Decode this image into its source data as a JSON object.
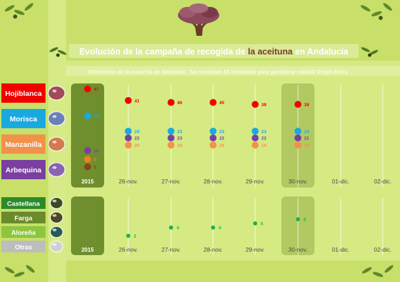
{
  "header": {
    "title_prefix": "Evolución de la campaña de recogida de ",
    "title_highlight": "la aceituna",
    "title_suffix": " en Andalucía",
    "subtitle": "Estimación de la cosecha en toneladas. Se necesitan 55 toneladas para garantizar calidad Virgen Extra"
  },
  "colors": {
    "background": "#c8e06a",
    "panel": "#d6eb86",
    "column_highlight": "#6f8f2e",
    "gridline": "#ffffff",
    "Hojiblanca": "#f20000",
    "Morisca": "#19a9e0",
    "Manzanilla": "#f2924a",
    "Arbequina": "#7a3fa0",
    "Castellana": "#2c8a2a",
    "Farga": "#6b8a2a",
    "Aloreña": "#8cc63f",
    "Otras": "#bdbdbd",
    "extra_dark": "#8b4513",
    "extra_orange": "#e8811f",
    "lower_series": "#1fb24a"
  },
  "legend": {
    "upper": [
      {
        "name": "Hojiblanca",
        "color": "#f20000",
        "olive_color": "#a34a5a"
      },
      {
        "name": "Morisca",
        "color": "#19a9e0",
        "olive_color": "#6b7fb8"
      },
      {
        "name": "Manzanilla",
        "color": "#f2924a",
        "olive_color": "#d37a4f"
      },
      {
        "name": "Arbequina",
        "color": "#7a3fa0",
        "olive_color": "#8a63b3"
      }
    ],
    "lower": [
      {
        "name": "Castellana",
        "color": "#2c8a2a",
        "olive_color": "#3a4a22"
      },
      {
        "name": "Farga",
        "color": "#6b8a2a",
        "olive_color": "#4a4a1e"
      },
      {
        "name": "Aloreña",
        "color": "#8cc63f",
        "olive_color": "#2a5a52"
      },
      {
        "name": "Otras",
        "color": "#bdbdbd",
        "olive_color": "#d0d0d0"
      }
    ]
  },
  "chart_data": [
    {
      "type": "scatter",
      "categories": [
        "2015",
        "26-nov.",
        "27-nov.",
        "28-nov.",
        "29-nov.",
        "30-nov.",
        "01-dic.",
        "02-dic."
      ],
      "highlighted_categories": [
        "2015",
        "30-nov."
      ],
      "series": [
        {
          "name": "Hojiblanca",
          "values": [
            47,
            41,
            40,
            40,
            39,
            39,
            null,
            null
          ]
        },
        {
          "name": "Morisca",
          "values": [
            33,
            24,
            23,
            23,
            23,
            24,
            null,
            null
          ]
        },
        {
          "name": "Arbequina",
          "values": [
            15,
            22,
            23,
            22,
            22,
            21,
            null,
            null
          ]
        },
        {
          "name": "Manzanilla",
          "values": [
            8,
            20,
            19,
            20,
            19,
            19,
            null,
            null
          ]
        },
        {
          "name": "",
          "values": [
            5,
            null,
            null,
            null,
            null,
            null,
            null,
            null
          ]
        }
      ]
    },
    {
      "type": "scatter",
      "categories": [
        "2015",
        "26-nov.",
        "27-nov.",
        "28-nov.",
        "29-nov.",
        "30-nov.",
        "01-dic.",
        "02-dic."
      ],
      "highlighted_categories": [
        "2015",
        "30-nov."
      ],
      "series": [
        {
          "name": "",
          "values": [
            null,
            2,
            4,
            4,
            5,
            6,
            null,
            null
          ]
        }
      ]
    }
  ]
}
